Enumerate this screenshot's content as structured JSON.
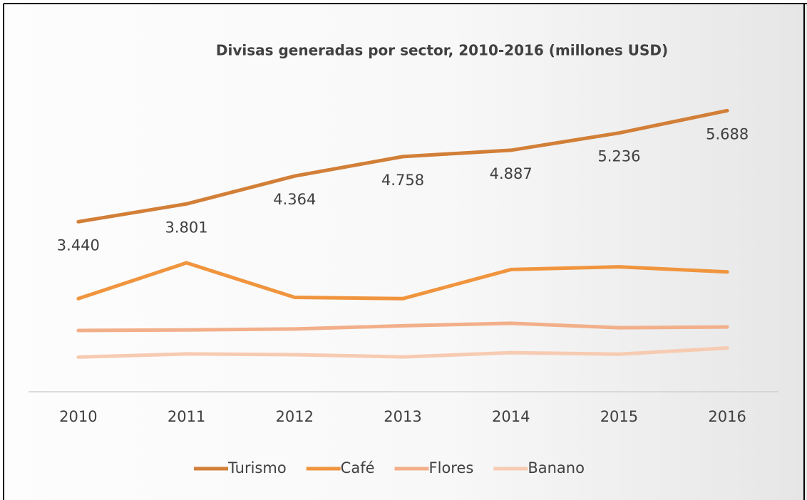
{
  "chart_data": {
    "type": "line",
    "title": "Divisas generadas por sector,  2010-2016 (millones USD)",
    "categories": [
      "2010",
      "2011",
      "2012",
      "2013",
      "2014",
      "2015",
      "2016"
    ],
    "series": [
      {
        "name": "Turismo",
        "color": "#d27f38",
        "values": [
          3440,
          3801,
          4364,
          4758,
          4887,
          5236,
          5688
        ],
        "value_labels": [
          "3.440",
          "3.801",
          "4.364",
          "4.758",
          "4.887",
          "5.236",
          "5.688"
        ]
      },
      {
        "name": "Café",
        "color": "#f0953e",
        "values": [
          1884,
          2608,
          1910,
          1884,
          2473,
          2527,
          2425
        ]
      },
      {
        "name": "Flores",
        "color": "#f2af8a",
        "values": [
          1240,
          1250,
          1270,
          1335,
          1385,
          1295,
          1310
        ]
      },
      {
        "name": "Banano",
        "color": "#f7cbb2",
        "values": [
          700,
          765,
          750,
          705,
          790,
          760,
          885
        ]
      }
    ],
    "ylim": [
      0,
      6500
    ],
    "legend": "bottom"
  }
}
